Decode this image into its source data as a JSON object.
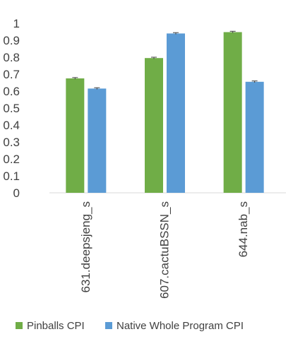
{
  "chart_data": {
    "type": "bar",
    "categories": [
      "631.deepsjeng_s",
      "607.cactuBSSN_s",
      "644.nab_s"
    ],
    "series": [
      {
        "name": "Pinballs CPI",
        "values": [
          0.675,
          0.795,
          0.948
        ],
        "color": "#70ad47"
      },
      {
        "name": "Native Whole Program CPI",
        "values": [
          0.615,
          0.94,
          0.655
        ],
        "color": "#5b9bd5"
      }
    ],
    "yticks": [
      "0",
      "0.1",
      "0.2",
      "0.3",
      "0.4",
      "0.5",
      "0.6",
      "0.7",
      "0.8",
      "0.9",
      "1"
    ],
    "ylim": [
      0,
      1
    ],
    "legend_position": "bottom",
    "error_bars": true,
    "grid": false
  }
}
